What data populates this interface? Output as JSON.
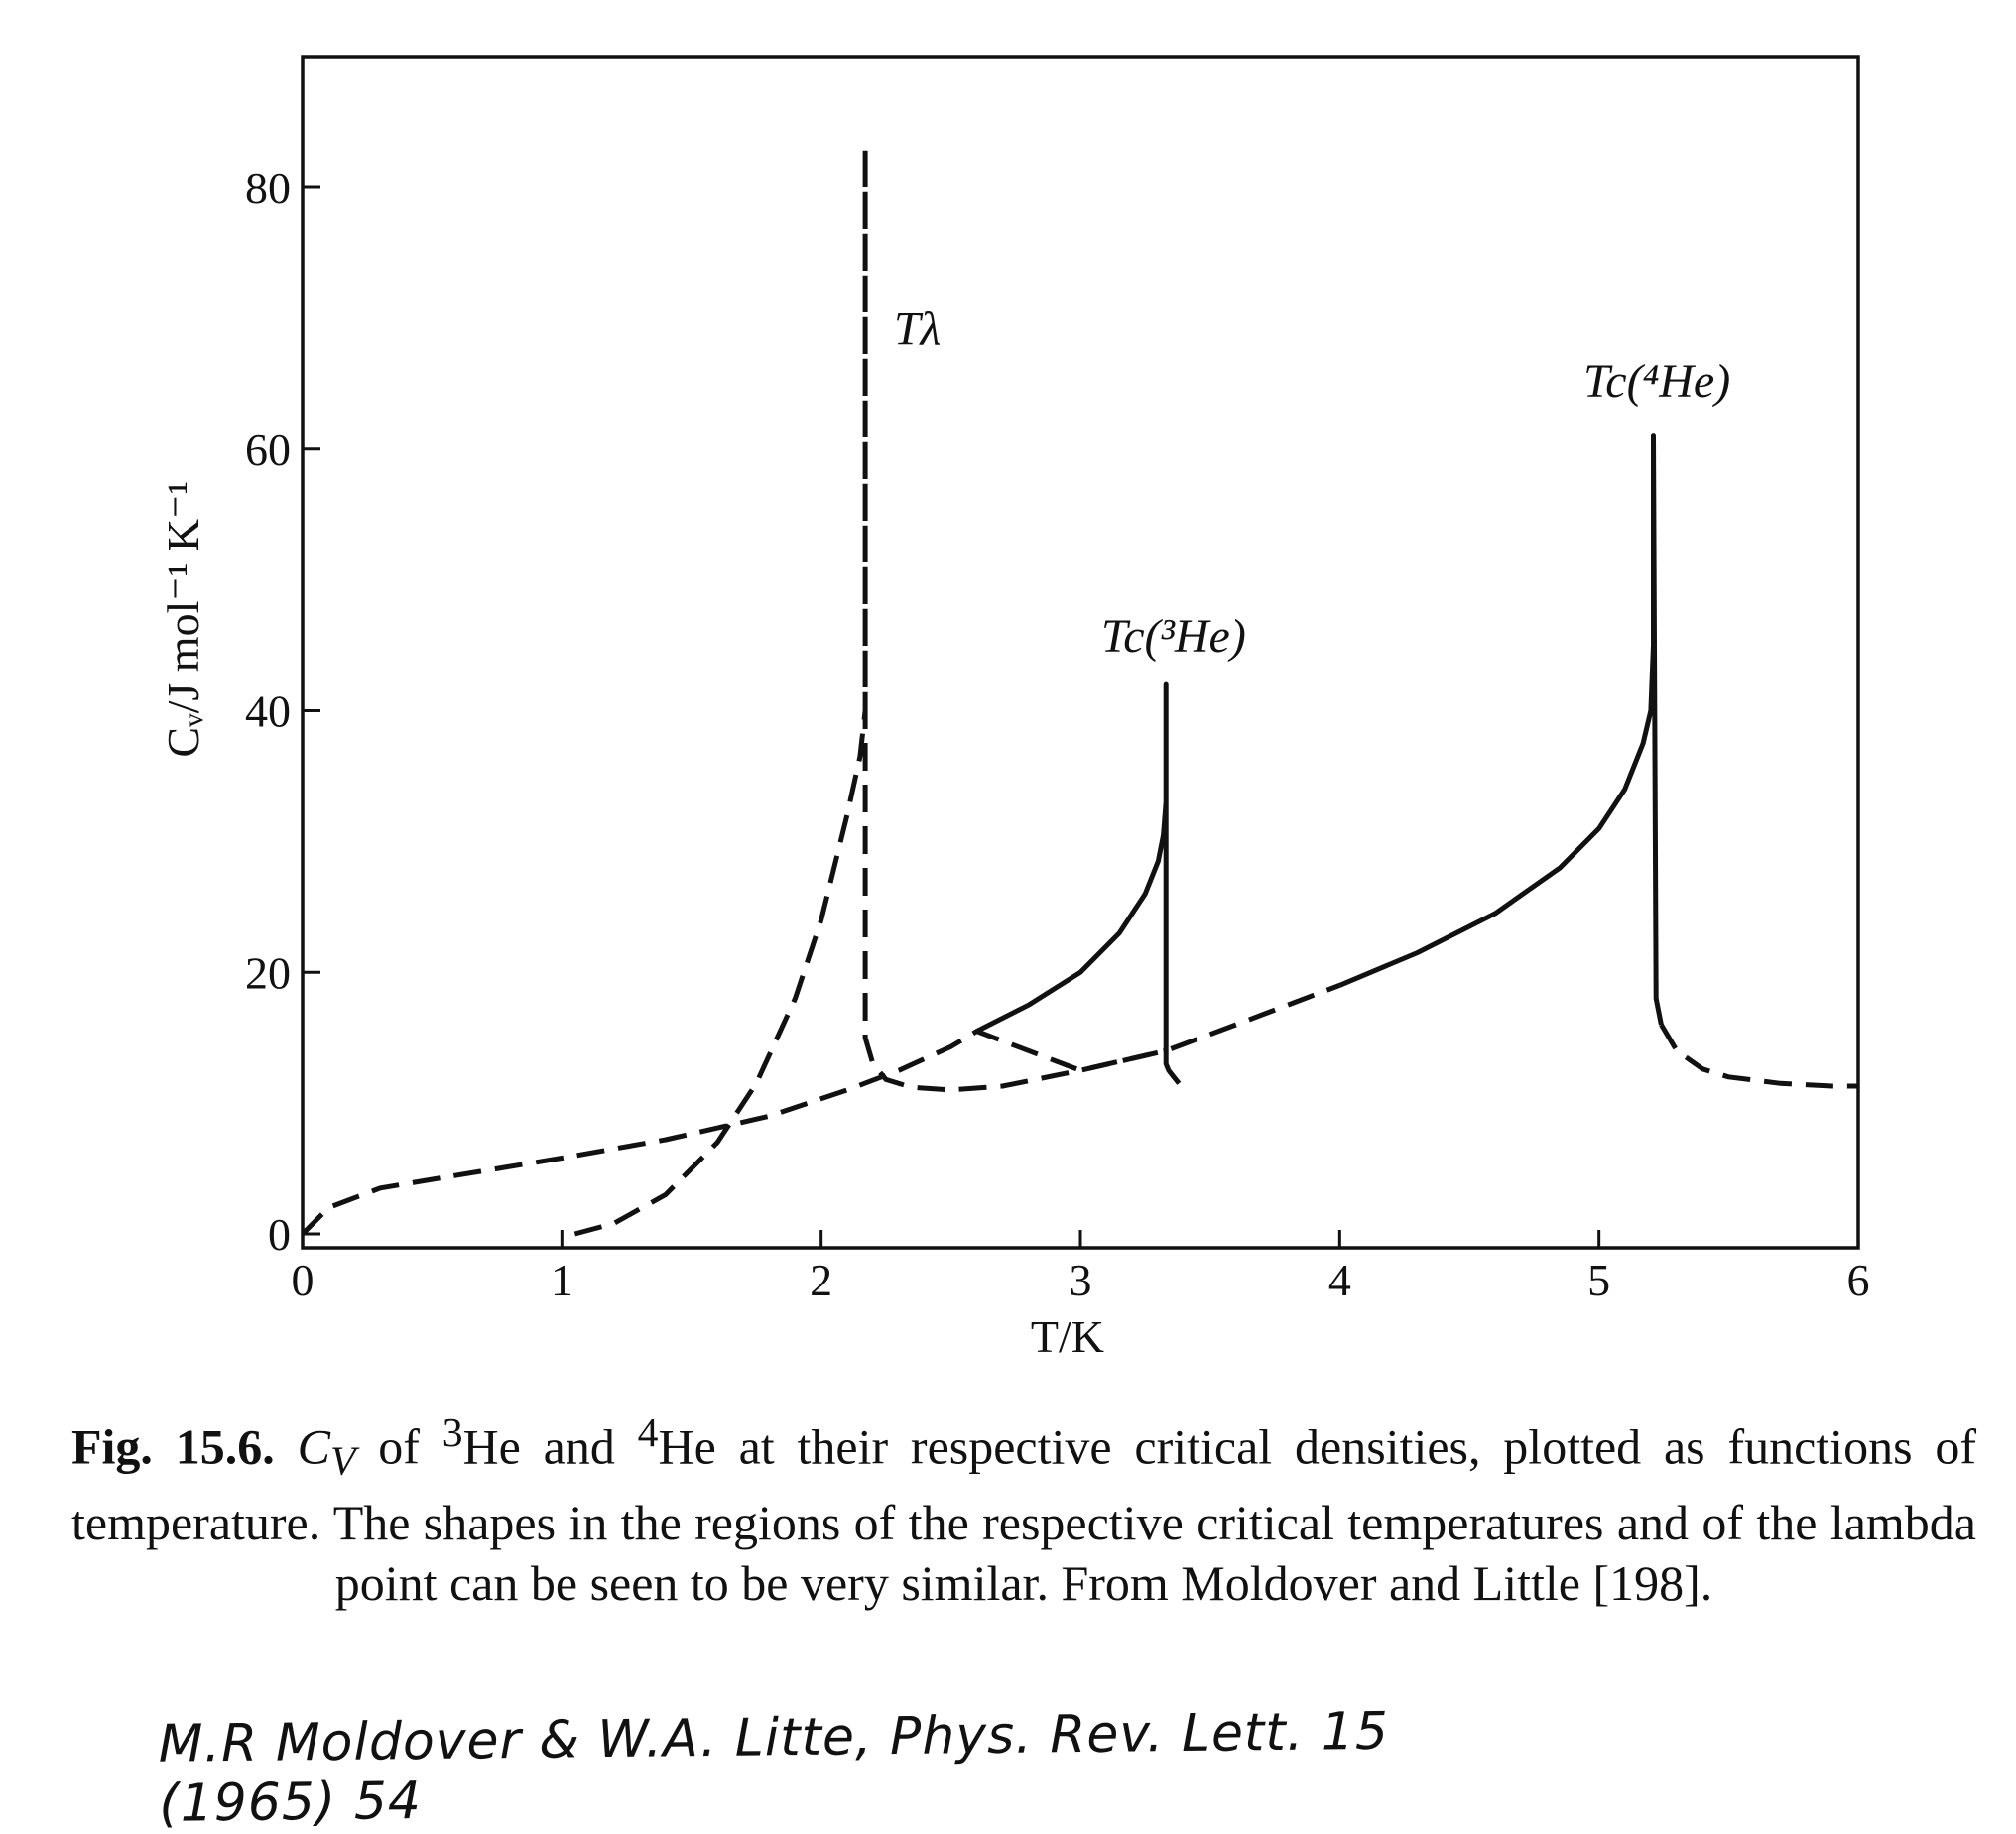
{
  "chart_data": {
    "type": "line",
    "xlabel": "T/K",
    "ylabel": "Cᵥ/J mol⁻¹ K⁻¹",
    "xlim": [
      0,
      6
    ],
    "ylim": [
      0,
      88
    ],
    "x_ticks": [
      "0",
      "1",
      "2",
      "3",
      "4",
      "5",
      "6"
    ],
    "y_ticks": [
      "0",
      "20",
      "40",
      "60",
      "80"
    ],
    "grid": false,
    "annotations": [
      {
        "id": "t-lambda",
        "text": "Tλ",
        "x": 2.28,
        "y": 68
      },
      {
        "id": "tc-3he",
        "text": "Tc(³He)",
        "x": 3.08,
        "y": 44.5
      },
      {
        "id": "tc-4he",
        "text": "Tc(⁴He)",
        "x": 4.94,
        "y": 64
      }
    ],
    "series": [
      {
        "id": "he3-critical",
        "style": "solid",
        "x": [
          2.6,
          2.8,
          3.0,
          3.15,
          3.25,
          3.3,
          3.32,
          3.33,
          3.33,
          3.33,
          3.34,
          3.36,
          3.38
        ],
        "y": [
          15.5,
          17.5,
          20.0,
          23.0,
          26.0,
          28.5,
          30.5,
          33.0,
          42.0,
          13.0,
          12.5,
          12.0,
          11.5
        ]
      },
      {
        "id": "he4-critical",
        "style": "solid",
        "x": [
          4.0,
          4.3,
          4.6,
          4.85,
          5.0,
          5.1,
          5.17,
          5.2,
          5.21,
          5.21,
          5.22,
          5.24
        ],
        "y": [
          19.0,
          21.5,
          24.5,
          28.0,
          31.0,
          34.0,
          37.5,
          40.0,
          45.0,
          61.0,
          18.0,
          16.0
        ]
      },
      {
        "id": "he4-continuation",
        "style": "dashed",
        "x": [
          5.24,
          5.3,
          5.4,
          5.5,
          5.7,
          5.9,
          6.0
        ],
        "y": [
          16.0,
          14.0,
          12.6,
          12.0,
          11.5,
          11.3,
          11.3
        ]
      },
      {
        "id": "he3-continuation",
        "style": "dashed",
        "x": [
          0.0,
          0.1,
          0.3,
          0.6,
          1.0,
          1.4,
          1.8,
          2.1,
          2.3,
          2.5,
          2.6,
          3.0,
          3.33,
          3.6,
          4.0
        ],
        "y": [
          0.0,
          2.0,
          3.5,
          4.5,
          5.8,
          7.2,
          9.0,
          11.0,
          12.5,
          14.3,
          15.5,
          12.5,
          14.0,
          16.0,
          19.0
        ]
      },
      {
        "id": "he4-lambda",
        "style": "dashed",
        "x": [
          1.05,
          1.2,
          1.4,
          1.6,
          1.75,
          1.9,
          2.0,
          2.1,
          2.15,
          2.17,
          2.17,
          2.17,
          2.17,
          2.2,
          2.25,
          2.35,
          2.5,
          2.7,
          3.0,
          3.33
        ],
        "y": [
          0.0,
          0.8,
          3.0,
          7.0,
          11.5,
          18.0,
          24.0,
          32.0,
          36.5,
          40.0,
          83.0,
          20.0,
          15.0,
          13.0,
          11.8,
          11.2,
          11.0,
          11.3,
          12.5,
          14.0
        ]
      }
    ]
  },
  "caption": {
    "label": "Fig. 15.6.",
    "symbol": "C",
    "symbol_sub": "V",
    "t1": " of ",
    "sup3": "3",
    "t2": "He and ",
    "sup4": "4",
    "t3": "He at their respective critical densities, plotted as functions of temperature. The shapes in the regions of the respective critical temperatures and of the lambda point can be seen to be very similar. From Moldover and Little [198]."
  },
  "handwritten_note": "M.R Moldover & W.A. Litte, Phys. Rev. Lett. 15 (1965) 54"
}
